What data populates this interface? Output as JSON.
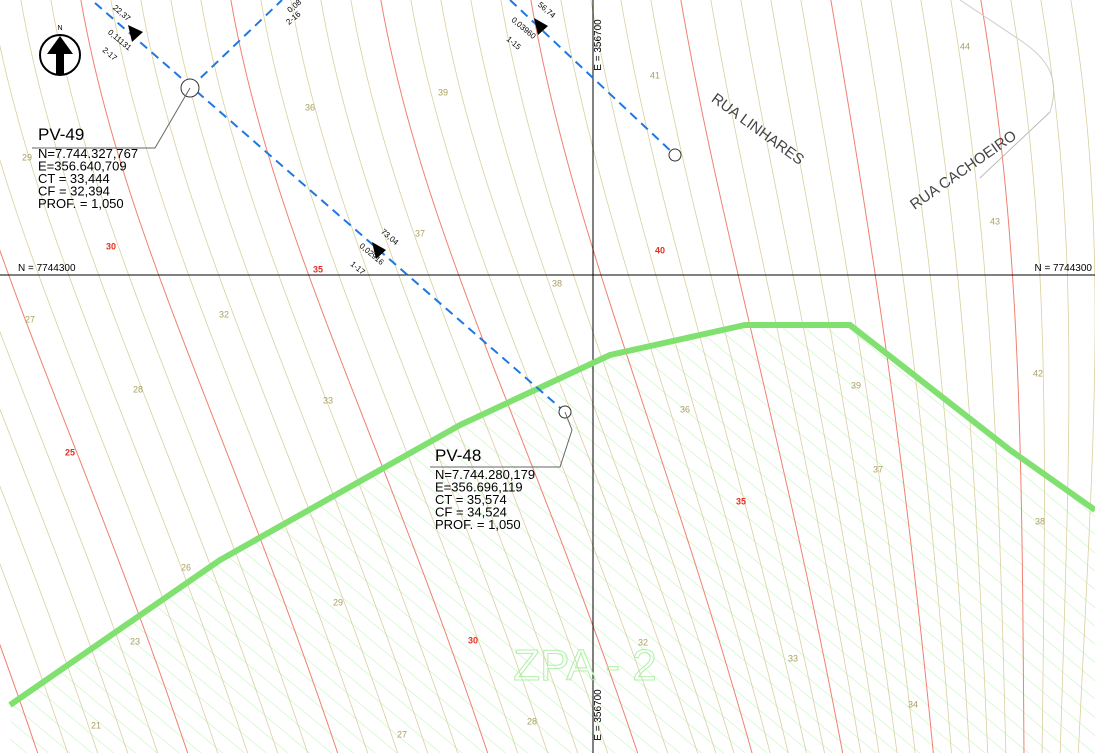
{
  "north_arrow": {
    "label": "N"
  },
  "manholes": [
    {
      "id": "PV-49",
      "lines": [
        "N=7.744.327,767",
        "E=356.640,709",
        "CT = 33,444",
        "CF = 32,394",
        "PROF. = 1,050"
      ]
    },
    {
      "id": "PV-48",
      "lines": [
        "N=7.744.280,179",
        "E=356.696,119",
        "CT = 35,574",
        "CF = 34,524",
        "PROF. = 1,050"
      ]
    }
  ],
  "grid_labels": {
    "north": [
      "N = 7744300",
      "N = 7744300"
    ],
    "east": [
      "E = 356700",
      "E = 356700"
    ]
  },
  "streets": [
    "RUA LINHARES",
    "RUA CACHOEIRO"
  ],
  "zone": "ZPA - 2",
  "pipe_labels": [
    {
      "length": "22,37",
      "slope": "0,11131",
      "segment": "2-17"
    },
    {
      "length": "73,04",
      "slope": "0,02916",
      "segment": "1-17"
    },
    {
      "length": "56,74",
      "slope": "0,03960",
      "segment": "1-15"
    },
    {
      "slope": "0,08",
      "segment": "2-16"
    }
  ],
  "contour_labels": [
    "29",
    "36",
    "39",
    "41",
    "44",
    "30",
    "35",
    "37",
    "40",
    "43",
    "38",
    "27",
    "32",
    "42",
    "28",
    "33",
    "39",
    "36",
    "25",
    "37",
    "35",
    "38",
    "26",
    "29",
    "30",
    "32",
    "33",
    "23",
    "34",
    "21",
    "27",
    "28"
  ]
}
